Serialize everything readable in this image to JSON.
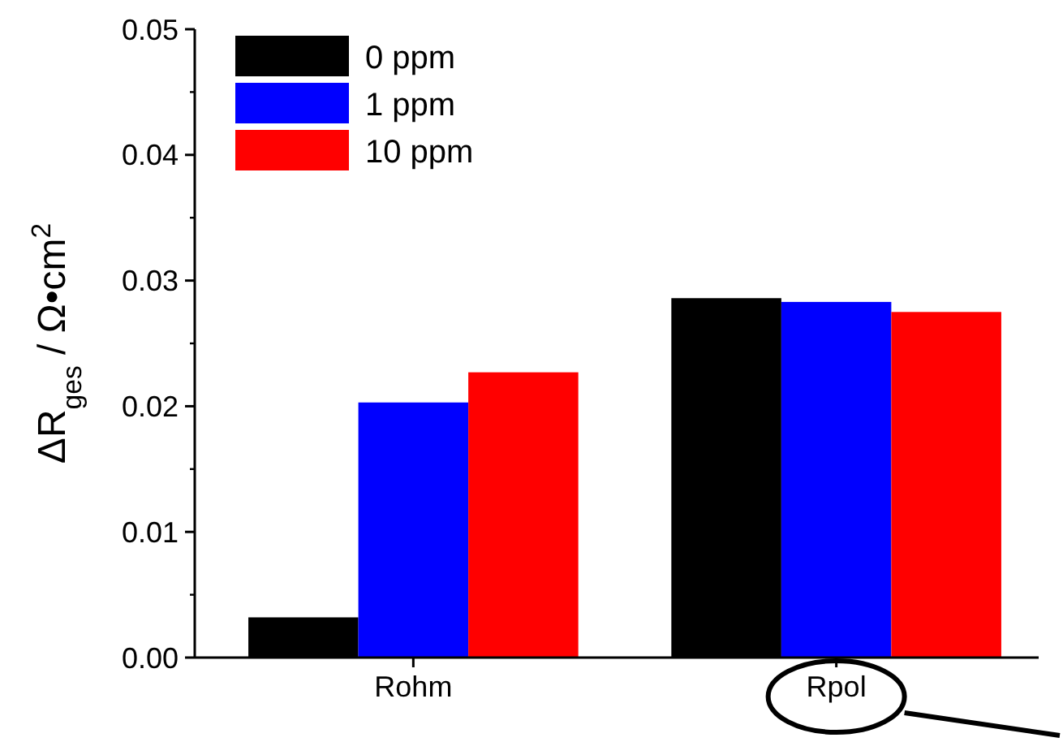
{
  "chart_data": {
    "type": "bar",
    "ylabel": "ΔR$_{ges}$ / Ω•cm$^{2}$",
    "categories": [
      "Rohm",
      "Rpol"
    ],
    "series": [
      {
        "name": "0 ppm",
        "color": "#000000",
        "values": [
          0.0032,
          0.0286
        ]
      },
      {
        "name": "1 ppm",
        "color": "#0000ff",
        "values": [
          0.0203,
          0.0283
        ]
      },
      {
        "name": "10 ppm",
        "color": "#ff0000",
        "values": [
          0.0227,
          0.0275
        ]
      }
    ],
    "ylim": [
      0,
      0.05
    ],
    "yticks": [
      {
        "value": 0,
        "label": "0.00"
      },
      {
        "value": 0.01,
        "label": "0.01"
      },
      {
        "value": 0.02,
        "label": "0.02"
      },
      {
        "value": 0.03,
        "label": "0.03"
      },
      {
        "value": 0.04,
        "label": "0.04"
      },
      {
        "value": 0.05,
        "label": "0.05"
      }
    ],
    "grid": false,
    "legend": "top left"
  }
}
